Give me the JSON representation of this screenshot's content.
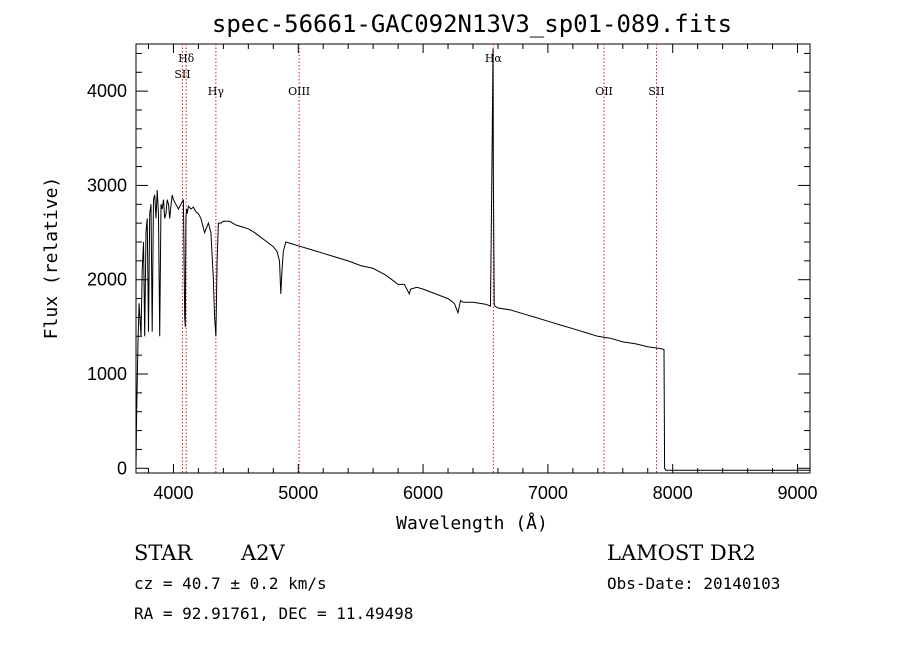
{
  "chart_data": {
    "type": "line",
    "title": "spec-56661-GAC092N13V3_sp01-089.fits",
    "xlabel": "Wavelength (Å)",
    "ylabel": "Flux (relative)",
    "xlim": [
      3700,
      9100
    ],
    "ylim": [
      -50,
      4500
    ],
    "x_ticks": [
      4000,
      5000,
      6000,
      7000,
      8000,
      9000
    ],
    "y_ticks": [
      0,
      1000,
      2000,
      3000,
      4000
    ],
    "grid": false,
    "series": [
      {
        "x": [
          3700,
          3705,
          3715,
          3725,
          3740,
          3750,
          3760,
          3770,
          3780,
          3790,
          3800,
          3810,
          3820,
          3830,
          3840,
          3850,
          3860,
          3870,
          3880,
          3890,
          3900,
          3910,
          3920,
          3930,
          3940,
          3950,
          3960,
          3970,
          3980,
          3990,
          4000,
          4020,
          4040,
          4060,
          4080,
          4090,
          4095,
          4100,
          4105,
          4110,
          4120,
          4140,
          4160,
          4180,
          4200,
          4220,
          4250,
          4280,
          4300,
          4320,
          4330,
          4340,
          4350,
          4360,
          4380,
          4400,
          4450,
          4500,
          4550,
          4600,
          4650,
          4700,
          4750,
          4800,
          4830,
          4850,
          4860,
          4870,
          4880,
          4900,
          4950,
          5000,
          5100,
          5200,
          5300,
          5400,
          5500,
          5600,
          5700,
          5750,
          5800,
          5850,
          5890,
          5900,
          5950,
          6000,
          6100,
          6200,
          6250,
          6280,
          6300,
          6320,
          6400,
          6500,
          6540,
          6555,
          6560,
          6563,
          6566,
          6570,
          6575,
          6600,
          6700,
          6800,
          6900,
          7000,
          7100,
          7200,
          7300,
          7400,
          7500,
          7600,
          7700,
          7800,
          7900,
          7930,
          7935,
          7945,
          7950,
          7960,
          8000,
          8500,
          9000,
          9100
        ],
        "y": [
          0,
          550,
          1300,
          1750,
          1400,
          2100,
          2400,
          1400,
          2500,
          2650,
          1450,
          2700,
          2800,
          1450,
          2850,
          2900,
          2650,
          2950,
          2700,
          1400,
          2800,
          2750,
          2850,
          2650,
          2700,
          2850,
          2800,
          2650,
          2780,
          2900,
          2850,
          2800,
          2750,
          2800,
          2850,
          1600,
          1500,
          2650,
          2750,
          2700,
          2780,
          2750,
          2770,
          2720,
          2700,
          2650,
          2500,
          2600,
          2500,
          2000,
          1600,
          1400,
          2200,
          2600,
          2600,
          2620,
          2620,
          2580,
          2560,
          2540,
          2500,
          2450,
          2400,
          2350,
          2300,
          2200,
          1850,
          2100,
          2300,
          2400,
          2380,
          2360,
          2320,
          2280,
          2240,
          2200,
          2150,
          2120,
          2050,
          2000,
          1950,
          1950,
          1850,
          1900,
          1920,
          1900,
          1850,
          1800,
          1750,
          1650,
          1780,
          1760,
          1760,
          1740,
          1720,
          3600,
          4450,
          3200,
          2600,
          1750,
          1720,
          1700,
          1680,
          1640,
          1600,
          1560,
          1520,
          1480,
          1440,
          1400,
          1380,
          1340,
          1320,
          1290,
          1270,
          1260,
          0,
          -20,
          -20,
          -20,
          -20,
          -20,
          -20,
          -20
        ]
      }
    ],
    "spectral_lines": [
      {
        "label": "Hδ",
        "x": 4102
      },
      {
        "label": "SII",
        "x": 4072
      },
      {
        "label": "Hγ",
        "x": 4340
      },
      {
        "label": "OIII",
        "x": 5007
      },
      {
        "label": "Hα",
        "x": 6563
      },
      {
        "label": "OII",
        "x": 7450
      },
      {
        "label": "SII",
        "x": 7870
      }
    ]
  },
  "info": {
    "object_type": "STAR",
    "subclass": "A2V",
    "survey": "LAMOST DR2",
    "cz": "cz = 40.7 ± 0.2 km/s",
    "obs_date": "Obs-Date: 20140103",
    "coords": "RA =  92.91761, DEC =  11.49498"
  },
  "colors": {
    "axes": "#000000",
    "spectrum": "#000000",
    "line_markers": "#cc2222"
  }
}
